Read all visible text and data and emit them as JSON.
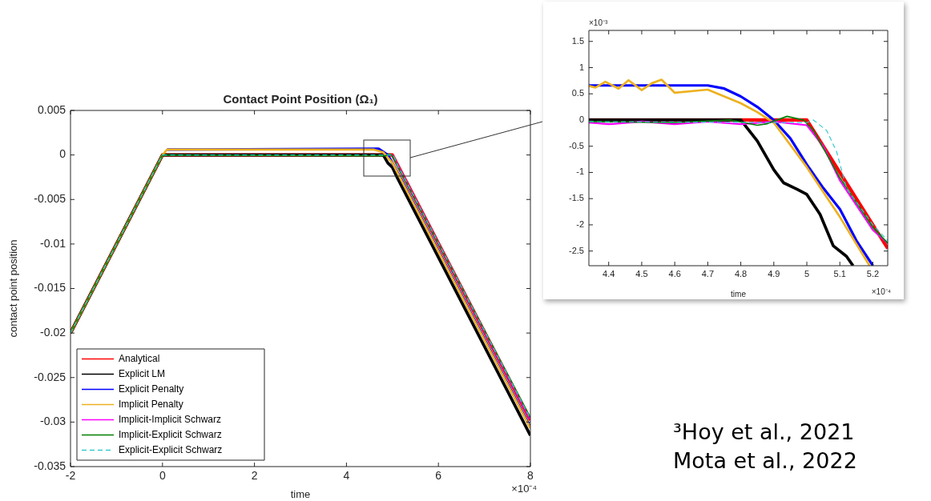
{
  "chart_data": [
    {
      "type": "line",
      "title": "Contact Point Position (Ω₁)",
      "xlabel": "time",
      "ylabel": "contact point position",
      "xlim": [
        -2,
        8
      ],
      "xticks": [
        -2,
        0,
        2,
        4,
        6,
        8
      ],
      "ylim": [
        -0.035,
        0.005
      ],
      "yticks": [
        -0.035,
        -0.03,
        -0.025,
        -0.02,
        -0.015,
        -0.01,
        -0.005,
        0,
        0.005
      ],
      "legend": "bottom left",
      "annotations": [
        "×10⁻⁴",
        "³Hoy et al., 2021",
        "Mota et al., 2022"
      ],
      "series": [
        {
          "name": "Analytical",
          "color": "#ff0000",
          "x": [
            -2,
            0,
            5,
            8
          ],
          "values": [
            -0.02,
            0,
            0,
            -0.0298
          ]
        },
        {
          "name": "Explicit LM",
          "color": "#000000",
          "x": [
            -2,
            0,
            4.8,
            4.9,
            5.0,
            5.1,
            8
          ],
          "values": [
            -0.02,
            0,
            0,
            -0.0009,
            -0.0014,
            -0.0025,
            -0.0315
          ]
        },
        {
          "name": "Explicit Penalty",
          "color": "#0000ff",
          "x": [
            0.1,
            4.7,
            4.9,
            5.0,
            5.2,
            8
          ],
          "values": [
            0.0006,
            0.0007,
            0,
            -0.0009,
            -0.0028,
            -0.0306
          ]
        },
        {
          "name": "Implicit Penalty",
          "color": "#edb120",
          "x": [
            -2,
            0,
            0.1,
            4.6,
            4.8,
            5.0,
            5.19,
            8
          ],
          "values": [
            -0.02,
            0,
            0.0006,
            0.0006,
            0.0003,
            -0.0009,
            -0.0028,
            -0.0307
          ]
        },
        {
          "name": "Implicit-Implicit Schwarz",
          "color": "#ff00ff",
          "x": [
            5.0,
            8
          ],
          "values": [
            0,
            -0.0297
          ]
        },
        {
          "name": "Implicit-Explicit Schwarz",
          "color": "#008000",
          "x": [
            -2,
            0,
            4.85,
            4.94,
            5.0,
            5.2,
            8
          ],
          "values": [
            -0.02,
            0,
            -0.0001,
            0.0001,
            -0.0001,
            -0.0021,
            -0.0295
          ]
        },
        {
          "name": "Explicit-Explicit Schwarz",
          "color": "#33cccc",
          "line_style": "dashed",
          "x": [
            -2,
            0,
            5.02,
            5.12,
            5.2,
            8
          ],
          "values": [
            -0.02,
            0,
            0,
            -0.0013,
            -0.002,
            -0.0296
          ]
        }
      ]
    },
    {
      "type": "line",
      "xlabel": "time",
      "xlim": [
        4.34,
        5.245
      ],
      "xticks": [
        4.4,
        4.5,
        4.6,
        4.7,
        4.8,
        4.9,
        5,
        5.1,
        5.2
      ],
      "ylim": [
        -2.78,
        1.71
      ],
      "yticks": [
        -2.5,
        -2,
        -1.5,
        -1,
        -0.5,
        0,
        0.5,
        1,
        1.5
      ],
      "annotations": [
        "×10⁻³",
        "×10⁻⁴"
      ],
      "series": [
        {
          "color": "#ff0000",
          "x": [
            4.34,
            5.0,
            5.245
          ],
          "values": [
            0,
            0,
            -2.45
          ]
        },
        {
          "color": "#000000",
          "x": [
            4.34,
            4.8,
            4.85,
            4.9,
            4.93,
            4.97,
            5.0,
            5.04,
            5.08,
            5.12,
            5.14
          ],
          "values": [
            0,
            0,
            -0.4,
            -0.95,
            -1.2,
            -1.32,
            -1.42,
            -1.8,
            -2.4,
            -2.6,
            -2.78
          ]
        },
        {
          "color": "#0000ff",
          "x": [
            4.34,
            4.7,
            4.75,
            4.8,
            4.85,
            4.9,
            4.95,
            5.0,
            5.05,
            5.1,
            5.15,
            5.2
          ],
          "values": [
            0.66,
            0.66,
            0.6,
            0.45,
            0.25,
            0.0,
            -0.35,
            -0.85,
            -1.3,
            -1.7,
            -2.3,
            -2.78
          ]
        },
        {
          "color": "#edb120",
          "x": [
            4.34,
            4.36,
            4.39,
            4.43,
            4.46,
            4.5,
            4.53,
            4.56,
            4.6,
            4.7,
            4.75,
            4.8,
            4.85,
            4.9,
            5.0,
            5.1,
            5.19
          ],
          "values": [
            0.65,
            0.62,
            0.73,
            0.6,
            0.76,
            0.57,
            0.7,
            0.77,
            0.52,
            0.58,
            0.45,
            0.32,
            0.15,
            -0.05,
            -0.9,
            -1.85,
            -2.78
          ]
        },
        {
          "color": "#ff00ff",
          "x": [
            4.34,
            4.4,
            4.5,
            4.6,
            4.7,
            4.8,
            4.9,
            5.0,
            5.05,
            5.1,
            5.2,
            5.245
          ],
          "values": [
            -0.05,
            -0.08,
            -0.03,
            -0.08,
            -0.03,
            -0.08,
            -0.03,
            -0.1,
            -0.5,
            -1.15,
            -2.1,
            -2.35
          ]
        },
        {
          "color": "#008000",
          "x": [
            4.34,
            4.6,
            4.77,
            4.85,
            4.88,
            4.94,
            4.99,
            5.02,
            5.1,
            5.2,
            5.245
          ],
          "values": [
            -0.03,
            -0.05,
            0,
            -0.1,
            -0.07,
            0.07,
            0.0,
            -0.2,
            -1.1,
            -2.05,
            -2.35
          ]
        },
        {
          "color": "#33cccc",
          "line_style": "dashed",
          "x": [
            4.34,
            5.0,
            5.02,
            5.06,
            5.09,
            5.12,
            5.2,
            5.245
          ],
          "values": [
            -0.03,
            -0.05,
            0,
            -0.2,
            -0.6,
            -1.3,
            -2.0,
            -2.3
          ]
        }
      ]
    }
  ]
}
